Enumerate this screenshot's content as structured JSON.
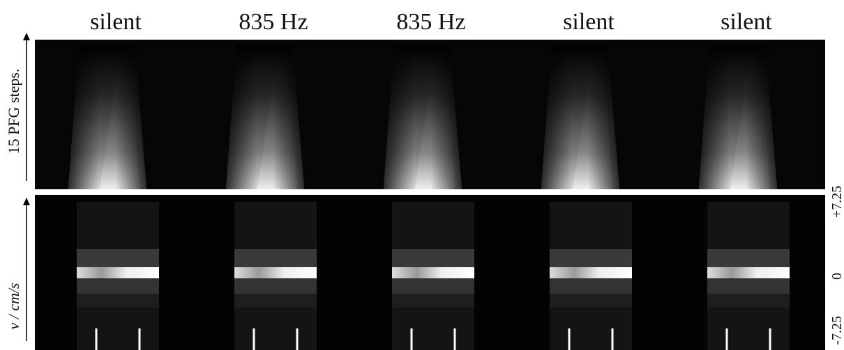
{
  "columns": [
    "silent",
    "835 Hz",
    "835 Hz",
    "silent",
    "silent"
  ],
  "top_axis_label": "15 PFG steps.",
  "bottom_axis_label": "v / cm/s",
  "right_ticks": [
    "+7.25",
    "0",
    "-7.25"
  ]
}
